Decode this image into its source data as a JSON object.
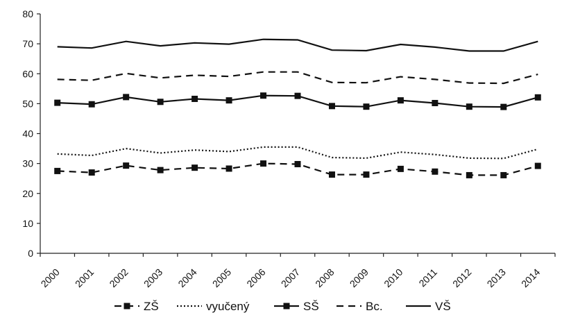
{
  "chart_data": {
    "type": "line",
    "title": "",
    "xlabel": "",
    "ylabel": "",
    "categories": [
      "2000",
      "2001",
      "2002",
      "2003",
      "2004",
      "2005",
      "2006",
      "2007",
      "2008",
      "2009",
      "2010",
      "2011",
      "2012",
      "2013",
      "2014"
    ],
    "ylim": [
      0,
      80
    ],
    "yticks": [
      0,
      10,
      20,
      30,
      40,
      50,
      60,
      70,
      80
    ],
    "grid": false,
    "legend_position": "bottom",
    "series": [
      {
        "name": "ZŠ",
        "style": "dashed-square-markers",
        "color": "#111111",
        "values": [
          27.5,
          27.0,
          29.3,
          27.8,
          28.6,
          28.3,
          30.0,
          29.8,
          26.3,
          26.3,
          28.2,
          27.3,
          26.1,
          26.1,
          29.2
        ]
      },
      {
        "name": "vyučený",
        "style": "dotted",
        "color": "#111111",
        "values": [
          33.2,
          32.7,
          35.0,
          33.5,
          34.5,
          34.0,
          35.5,
          35.5,
          32.0,
          31.8,
          33.8,
          33.0,
          31.8,
          31.7,
          34.8
        ]
      },
      {
        "name": "SŠ",
        "style": "solid-square-markers",
        "color": "#111111",
        "values": [
          50.3,
          49.8,
          52.2,
          50.6,
          51.6,
          51.1,
          52.7,
          52.6,
          49.2,
          49.0,
          51.1,
          50.2,
          49.0,
          48.9,
          52.1
        ]
      },
      {
        "name": "Bc.",
        "style": "dashed",
        "color": "#111111",
        "values": [
          58.1,
          57.8,
          60.1,
          58.6,
          59.5,
          59.1,
          60.6,
          60.6,
          57.1,
          57.0,
          59.0,
          58.1,
          56.9,
          56.8,
          59.8
        ]
      },
      {
        "name": "VŠ",
        "style": "solid",
        "color": "#111111",
        "values": [
          69.0,
          68.6,
          70.8,
          69.3,
          70.3,
          69.9,
          71.5,
          71.3,
          67.9,
          67.7,
          69.8,
          68.9,
          67.6,
          67.6,
          70.8
        ]
      }
    ]
  }
}
